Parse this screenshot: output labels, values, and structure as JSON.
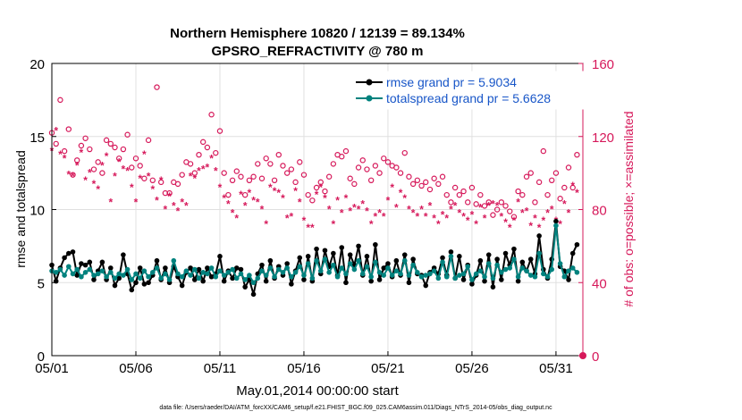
{
  "chart_data": {
    "type": "line",
    "title": "Northern Hemisphere 10820 / 12139 = 89.134%",
    "subtitle": "GPSRO_REFRACTIVITY @ 780 m",
    "xlabel": "May.01,2014 00:00:00 start",
    "ylabel_left": "rmse and totalspread",
    "ylabel_right": "# of obs: o=possible; ×=assimilated",
    "footnote": "data file: /Users/raeder/DAI/ATM_forcXX/CAM6_setup/f.e21.FHIST_BGC.f09_025.CAM6assim.011/Diags_NTrS_2014-05/obs_diag_output.nc",
    "x_ticks": [
      "05/01",
      "05/06",
      "05/11",
      "05/16",
      "05/21",
      "05/26",
      "05/31"
    ],
    "x_tick_days": [
      0,
      5,
      10,
      15,
      20,
      25,
      30
    ],
    "xlim": [
      0,
      31.6
    ],
    "ylim_left": [
      0,
      20
    ],
    "yticks_left": [
      "0",
      "5",
      "10",
      "15",
      "20"
    ],
    "ylim_right": [
      0,
      160
    ],
    "yticks_right": [
      "0",
      "40",
      "80",
      "120",
      "160"
    ],
    "legend": {
      "placement": "top-right"
    },
    "series": [
      {
        "name": "rmse grand pr = 5.9034",
        "axis": "left",
        "color": "#000000",
        "marker": "dot",
        "x": [
          0,
          0.25,
          0.5,
          0.75,
          1,
          1.25,
          1.5,
          1.75,
          2,
          2.25,
          2.5,
          2.75,
          3,
          3.25,
          3.5,
          3.75,
          4,
          4.25,
          4.5,
          4.75,
          5,
          5.25,
          5.5,
          5.75,
          6,
          6.25,
          6.5,
          6.75,
          7,
          7.25,
          7.5,
          7.75,
          8,
          8.25,
          8.5,
          8.75,
          9,
          9.25,
          9.5,
          9.75,
          10,
          10.25,
          10.5,
          10.75,
          11,
          11.25,
          11.5,
          11.75,
          12,
          12.25,
          12.5,
          12.75,
          13,
          13.25,
          13.5,
          13.75,
          14,
          14.25,
          14.5,
          14.75,
          15,
          15.25,
          15.5,
          15.75,
          16,
          16.25,
          16.5,
          16.75,
          17,
          17.25,
          17.5,
          17.75,
          18,
          18.25,
          18.5,
          18.75,
          19,
          19.25,
          19.5,
          19.75,
          20,
          20.25,
          20.5,
          20.75,
          21,
          21.25,
          21.5,
          21.75,
          22,
          22.25,
          22.5,
          22.75,
          23,
          23.25,
          23.5,
          23.75,
          24,
          24.25,
          24.5,
          24.75,
          25,
          25.25,
          25.5,
          25.75,
          26,
          26.25,
          26.5,
          26.75,
          27,
          27.25,
          27.5,
          27.75,
          28,
          28.25,
          28.5,
          28.75,
          29,
          29.25,
          29.5,
          29.75,
          30,
          30.25,
          30.5,
          30.75,
          31,
          31.25
        ],
        "values": [
          6.2,
          5.1,
          6.0,
          6.7,
          7.0,
          7.1,
          5.5,
          6.3,
          6.2,
          6.4,
          5.2,
          5.8,
          6.4,
          5.2,
          6.0,
          4.8,
          5.3,
          6.9,
          5.6,
          4.5,
          5.0,
          6.0,
          4.9,
          5.0,
          5.5,
          6.5,
          5.2,
          6.0,
          5.0,
          6.1,
          5.4,
          4.8,
          5.7,
          6.0,
          5.2,
          5.9,
          5.1,
          6.0,
          5.4,
          5.6,
          6.8,
          5.1,
          5.8,
          5.3,
          6.0,
          5.9,
          4.7,
          5.2,
          4.2,
          5.6,
          6.2,
          5.1,
          6.5,
          5.3,
          6.1,
          5.5,
          6.3,
          4.9,
          5.8,
          6.7,
          5.2,
          6.8,
          5.1,
          7.3,
          5.6,
          7.2,
          6.1,
          7.0,
          5.5,
          7.4,
          5.0,
          6.9,
          6.2,
          7.5,
          5.5,
          6.8,
          5.1,
          7.6,
          5.2,
          6.0,
          6.3,
          5.4,
          6.5,
          5.5,
          6.9,
          5.0,
          6.6,
          5.6,
          5.5,
          4.8,
          5.7,
          6.0,
          5.6,
          6.7,
          5.5,
          7.1,
          5.3,
          6.8,
          5.2,
          6.2,
          4.9,
          5.5,
          6.5,
          5.1,
          6.9,
          4.7,
          6.6,
          5.2,
          7.0,
          6.2,
          7.3,
          5.1,
          6.4,
          5.8,
          6.6,
          5.6,
          8.2,
          5.9,
          5.3,
          6.6,
          9.2,
          6.1,
          5.8,
          5.2,
          7.0,
          7.6
        ]
      },
      {
        "name": "totalspread grand pr = 5.6628",
        "axis": "left",
        "color": "#00827e",
        "marker": "dot",
        "x": [
          0,
          0.25,
          0.5,
          0.75,
          1,
          1.25,
          1.5,
          1.75,
          2,
          2.25,
          2.5,
          2.75,
          3,
          3.25,
          3.5,
          3.75,
          4,
          4.25,
          4.5,
          4.75,
          5,
          5.25,
          5.5,
          5.75,
          6,
          6.25,
          6.5,
          6.75,
          7,
          7.25,
          7.5,
          7.75,
          8,
          8.25,
          8.5,
          8.75,
          9,
          9.25,
          9.5,
          9.75,
          10,
          10.25,
          10.5,
          10.75,
          11,
          11.25,
          11.5,
          11.75,
          12,
          12.25,
          12.5,
          12.75,
          13,
          13.25,
          13.5,
          13.75,
          14,
          14.25,
          14.5,
          14.75,
          15,
          15.25,
          15.5,
          15.75,
          16,
          16.25,
          16.5,
          16.75,
          17,
          17.25,
          17.5,
          17.75,
          18,
          18.25,
          18.5,
          18.75,
          19,
          19.25,
          19.5,
          19.75,
          20,
          20.25,
          20.5,
          20.75,
          21,
          21.25,
          21.5,
          21.75,
          22,
          22.25,
          22.5,
          22.75,
          23,
          23.25,
          23.5,
          23.75,
          24,
          24.25,
          24.5,
          24.75,
          25,
          25.25,
          25.5,
          25.75,
          26,
          26.25,
          26.5,
          26.75,
          27,
          27.25,
          27.5,
          27.75,
          28,
          28.25,
          28.5,
          28.75,
          29,
          29.25,
          29.5,
          29.75,
          30,
          30.25,
          30.5,
          30.75,
          31,
          31.25
        ],
        "values": [
          5.8,
          5.7,
          5.9,
          5.5,
          6.1,
          5.6,
          5.9,
          5.4,
          5.7,
          5.9,
          5.5,
          5.6,
          5.8,
          5.4,
          5.7,
          5.3,
          5.6,
          5.5,
          5.9,
          5.2,
          5.6,
          5.3,
          5.8,
          5.4,
          5.7,
          6.0,
          5.3,
          5.6,
          5.2,
          6.5,
          5.6,
          5.4,
          5.8,
          5.5,
          5.9,
          5.3,
          5.7,
          5.6,
          6.0,
          5.4,
          5.8,
          5.5,
          5.7,
          5.9,
          5.3,
          5.6,
          5.2,
          5.5,
          5.0,
          5.3,
          5.8,
          5.5,
          6.0,
          5.4,
          5.9,
          5.7,
          6.0,
          5.4,
          5.7,
          6.1,
          5.5,
          6.3,
          5.3,
          6.5,
          5.8,
          6.6,
          5.7,
          6.2,
          5.4,
          6.0,
          5.6,
          6.3,
          5.9,
          6.5,
          5.6,
          6.1,
          5.4,
          6.4,
          5.7,
          5.5,
          6.0,
          5.5,
          5.8,
          5.6,
          6.5,
          5.5,
          6.2,
          5.7,
          5.4,
          5.5,
          5.6,
          5.8,
          5.3,
          6.4,
          5.4,
          6.8,
          5.3,
          5.5,
          5.6,
          6.1,
          5.2,
          5.6,
          5.8,
          5.4,
          6.3,
          5.3,
          6.2,
          5.7,
          5.9,
          6.0,
          6.6,
          5.4,
          6.0,
          5.8,
          5.5,
          5.4,
          7.0,
          5.6,
          5.4,
          5.9,
          8.9,
          6.3,
          5.4,
          5.8,
          6.0,
          5.7
        ]
      },
      {
        "name": "possible obs count",
        "axis": "right",
        "color": "#d6185a",
        "marker": "circle",
        "x": [
          0,
          0.25,
          0.5,
          0.75,
          1,
          1.25,
          1.5,
          1.75,
          2,
          2.25,
          2.5,
          2.75,
          3,
          3.25,
          3.5,
          3.75,
          4,
          4.25,
          4.5,
          4.75,
          5,
          5.25,
          5.5,
          5.75,
          6,
          6.25,
          6.5,
          6.75,
          7,
          7.25,
          7.5,
          7.75,
          8,
          8.25,
          8.5,
          8.75,
          9,
          9.25,
          9.5,
          9.75,
          10,
          10.25,
          10.5,
          10.75,
          11,
          11.25,
          11.5,
          11.75,
          12,
          12.25,
          12.5,
          12.75,
          13,
          13.25,
          13.5,
          13.75,
          14,
          14.25,
          14.5,
          14.75,
          15,
          15.25,
          15.5,
          15.75,
          16,
          16.25,
          16.5,
          16.75,
          17,
          17.25,
          17.5,
          17.75,
          18,
          18.25,
          18.5,
          18.75,
          19,
          19.25,
          19.5,
          19.75,
          20,
          20.25,
          20.5,
          20.75,
          21,
          21.25,
          21.5,
          21.75,
          22,
          22.25,
          22.5,
          22.75,
          23,
          23.25,
          23.5,
          23.75,
          24,
          24.25,
          24.5,
          24.75,
          25,
          25.25,
          25.5,
          25.75,
          26,
          26.25,
          26.5,
          26.75,
          27,
          27.25,
          27.5,
          27.75,
          28,
          28.25,
          28.5,
          28.75,
          29,
          29.25,
          29.5,
          29.75,
          30,
          30.25,
          30.5,
          30.75,
          31,
          31.25
        ],
        "values": [
          122,
          116,
          140,
          112,
          124,
          99,
          107,
          115,
          119,
          113,
          102,
          106,
          100,
          118,
          116,
          114,
          108,
          113,
          121,
          103,
          108,
          104,
          97,
          118,
          96,
          147,
          95,
          89,
          89,
          95,
          94,
          99,
          106,
          105,
          100,
          110,
          117,
          114,
          132,
          111,
          123,
          100,
          88,
          96,
          101,
          98,
          88,
          96,
          98,
          105,
          97,
          108,
          105,
          96,
          110,
          104,
          100,
          102,
          95,
          106,
          99,
          88,
          85,
          92,
          95,
          90,
          98,
          105,
          110,
          109,
          112,
          97,
          94,
          103,
          107,
          102,
          96,
          104,
          100,
          108,
          106,
          104,
          103,
          100,
          111,
          98,
          94,
          96,
          93,
          95,
          91,
          97,
          94,
          98,
          88,
          84,
          92,
          88,
          90,
          84,
          92,
          83,
          88,
          82,
          84,
          77,
          80,
          84,
          82,
          79,
          76,
          90,
          88,
          98,
          100,
          84,
          95,
          112,
          88,
          96,
          100,
          86,
          92,
          103,
          92,
          110
        ]
      },
      {
        "name": "assimilated obs count",
        "axis": "right",
        "color": "#d6185a",
        "marker": "asterisk",
        "x": [
          0,
          0.25,
          0.5,
          0.75,
          1,
          1.25,
          1.5,
          1.75,
          2,
          2.25,
          2.5,
          2.75,
          3,
          3.25,
          3.5,
          3.75,
          4,
          4.25,
          4.5,
          4.75,
          5,
          5.25,
          5.5,
          5.75,
          6,
          6.25,
          6.5,
          6.75,
          7,
          7.25,
          7.5,
          7.75,
          8,
          8.25,
          8.5,
          8.75,
          9,
          9.25,
          9.5,
          9.75,
          10,
          10.25,
          10.5,
          10.75,
          11,
          11.25,
          11.5,
          11.75,
          12,
          12.25,
          12.5,
          12.75,
          13,
          13.25,
          13.5,
          13.75,
          14,
          14.25,
          14.5,
          14.75,
          15,
          15.25,
          15.5,
          15.75,
          16,
          16.25,
          16.5,
          16.75,
          17,
          17.25,
          17.5,
          17.75,
          18,
          18.25,
          18.5,
          18.75,
          19,
          19.25,
          19.5,
          19.75,
          20,
          20.25,
          20.5,
          20.75,
          21,
          21.25,
          21.5,
          21.75,
          22,
          22.25,
          22.5,
          22.75,
          23,
          23.25,
          23.5,
          23.75,
          24,
          24.25,
          24.5,
          24.75,
          25,
          25.25,
          25.5,
          25.75,
          26,
          26.25,
          26.5,
          26.75,
          27,
          27.25,
          27.5,
          27.75,
          28,
          28.25,
          28.5,
          28.75,
          29,
          29.25,
          29.5,
          29.75,
          30,
          30.25,
          30.5,
          30.75,
          31,
          31.25
        ],
        "values": [
          112,
          123,
          110,
          108,
          99,
          98,
          104,
          111,
          96,
          100,
          94,
          91,
          104,
          109,
          84,
          98,
          106,
          102,
          101,
          92,
          84,
          97,
          110,
          98,
          91,
          85,
          96,
          80,
          87,
          82,
          79,
          84,
          82,
          98,
          97,
          101,
          102,
          103,
          108,
          101,
          92,
          86,
          83,
          78,
          75,
          88,
          82,
          89,
          85,
          84,
          80,
          72,
          92,
          90,
          89,
          86,
          75,
          76,
          90,
          84,
          74,
          70,
          70,
          88,
          92,
          86,
          80,
          72,
          85,
          78,
          86,
          79,
          81,
          80,
          83,
          79,
          72,
          76,
          78,
          76,
          85,
          92,
          81,
          89,
          86,
          80,
          78,
          76,
          80,
          76,
          82,
          75,
          72,
          77,
          75,
          80,
          82,
          78,
          76,
          74,
          77,
          72,
          81,
          75,
          82,
          83,
          82,
          76,
          73,
          70,
          74,
          84,
          78,
          79,
          71,
          75,
          70,
          74,
          78,
          80,
          74,
          72,
          83,
          78,
          93,
          89
        ]
      }
    ]
  }
}
